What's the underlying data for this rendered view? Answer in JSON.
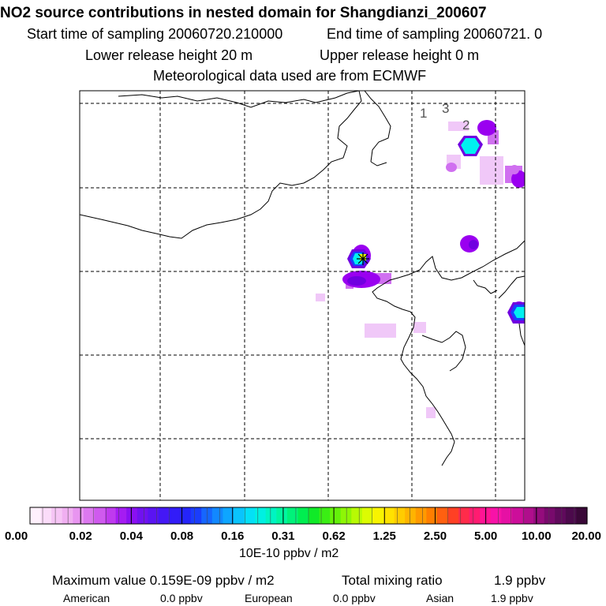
{
  "header": {
    "title": "NO2 source contributions in nested domain for Shangdianzi_200607",
    "start_sampling": "Start time of sampling 20060720.210000",
    "end_sampling": "End time of sampling 20060721.     0",
    "lower_release": "Lower release height   20 m",
    "upper_release": "Upper release height    0 m",
    "meteo": "Meteorological data used are from ECMWF"
  },
  "map": {
    "site_labels": [
      "1",
      "3",
      "2"
    ],
    "colors": {
      "coast": "#000000",
      "grid": "#000000",
      "light_violet": "#f0c8f8",
      "violet": "#d070f0",
      "purple": "#9a00f0",
      "deep_purple": "#7000e0",
      "blue": "#1840ff",
      "cyan": "#00f0f0",
      "yellow": "#e0ff00"
    }
  },
  "colorbar": {
    "tick_labels": [
      "0.00",
      "0.02",
      "0.04",
      "0.08",
      "0.16",
      "0.31",
      "0.62",
      "1.25",
      "2.50",
      "5.00",
      "10.00",
      "20.00"
    ],
    "unit": "10E-10 ppbv / m2",
    "colors": [
      "#fff0fc",
      "#fbdcf9",
      "#f6c5f5",
      "#f0aff1",
      "#e895f0",
      "#dc78ef",
      "#cf5aee",
      "#bf3aee",
      "#a51cf2",
      "#8a10f2",
      "#7012f0",
      "#5a14f2",
      "#4418f5",
      "#321cf8",
      "#2424fa",
      "#1a3dfc",
      "#1666ff",
      "#1288ff",
      "#0ea6ff",
      "#0ac4fd",
      "#04e0f6",
      "#00f0e2",
      "#00f4c2",
      "#00f6a0",
      "#00f27a",
      "#00ee50",
      "#10ea28",
      "#3aee14",
      "#64f20a",
      "#8ef606",
      "#b8fa04",
      "#dcfc02",
      "#f8f400",
      "#ffe200",
      "#ffcc00",
      "#ffb400",
      "#ff9a00",
      "#ff7e00",
      "#ff6010",
      "#ff4024",
      "#ff2c4a",
      "#ff1c70",
      "#ff1494",
      "#f812a8",
      "#e610a4",
      "#cc0e9a",
      "#b00e8c",
      "#940c7c",
      "#780a6c",
      "#600a5c",
      "#4c0a4c",
      "#3a0838"
    ]
  },
  "stats": {
    "max_value": "Maximum value  0.159E-09 ppbv / m2",
    "total_mixing": "Total mixing ratio",
    "total_value": "1.9 ppbv",
    "regions": [
      {
        "name": "American",
        "value": "0.0 ppbv"
      },
      {
        "name": "European",
        "value": "0.0 ppbv"
      },
      {
        "name": "Asian",
        "value": "1.9 ppbv"
      }
    ]
  }
}
